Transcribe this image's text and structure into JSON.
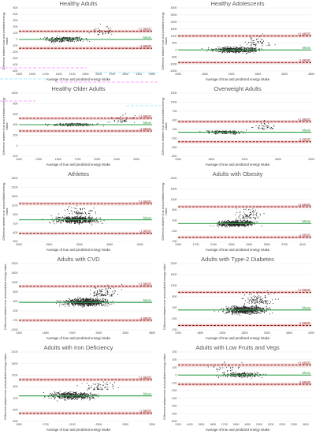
{
  "figure": {
    "colors": {
      "points": "#222222",
      "mean_line": "#2e9e48",
      "limit_line": "#8b1a1a",
      "limit_band": "#f6d9d9",
      "grid": "#e3e3e3",
      "overlay_magenta": "#ff66ff",
      "overlay_cyan": "#66e0ff"
    }
  },
  "chart_data": [
    {
      "type": "scatter",
      "title": "Healthy Adults",
      "ylabel": "Difference between true and predicted energy intake",
      "xlabel": "Average of true and predicted energy intake",
      "xticks": [
        "1300",
        "1500",
        "1700",
        "1900",
        "2100",
        "2300",
        "2500",
        "2700",
        "2900",
        "3100",
        "3300"
      ],
      "yticks": [
        "500",
        "400",
        "300",
        "200",
        "100",
        "0",
        "-100",
        "-200",
        "-300",
        "-400",
        "-500"
      ],
      "xlim": [
        1300,
        3300
      ],
      "ylim": [
        -500,
        500
      ],
      "mean": 0,
      "upper_loa": 130,
      "lower_loa": -140,
      "line_labels": {
        "upper": "+1.96SD",
        "mean": "Mean",
        "lower": "-1.96SD"
      },
      "points": {
        "n": 300,
        "x_center": 2000,
        "x_spread": 320,
        "y_spread": 70,
        "outlier_x": 2550,
        "outlier_spread": 250,
        "seed": 1
      }
    },
    {
      "type": "scatter",
      "title": "Healthy Adolescents",
      "ylabel": "Difference between true and predicted energy intake",
      "xlabel": "Average of true and predicted energy intake",
      "xticks": [
        "1300",
        "1800",
        "2300",
        "2800",
        "3300",
        "3800"
      ],
      "yticks": [
        "3000",
        "2500",
        "2000",
        "1500",
        "1000",
        "500",
        "0",
        "-500",
        "-1000",
        "-1500"
      ],
      "xlim": [
        1300,
        3800
      ],
      "ylim": [
        -1500,
        3000
      ],
      "mean": 0,
      "upper_loa": 1000,
      "lower_loa": -900,
      "line_labels": {
        "upper": "+1.96SD",
        "mean": "Mean",
        "lower": "-1.96SD"
      },
      "points": {
        "n": 600,
        "x_center": 2400,
        "x_spread": 450,
        "y_spread": 300,
        "outlier_x": 2800,
        "outlier_spread": 1100,
        "seed": 2
      }
    },
    {
      "type": "scatter",
      "title": "Healthy Older Adults",
      "ylabel": "Difference between true and predicted energy intake",
      "xlabel": "Average of true and predicted energy intake",
      "xticks": [
        "1000",
        "1250",
        "1500",
        "1750",
        "2000",
        "2250",
        "2500"
      ],
      "yticks": [
        "1000",
        "800",
        "600",
        "400",
        "200",
        "0",
        "-200"
      ],
      "xlim": [
        1000,
        2700
      ],
      "ylim": [
        -200,
        1000
      ],
      "mean": 400,
      "upper_loa": 520,
      "lower_loa": 280,
      "line_labels": {
        "upper": "+1.96SD",
        "mean": "Mean",
        "lower": "-1.96SD"
      },
      "points": {
        "n": 260,
        "x_center": 1700,
        "x_spread": 300,
        "y_spread": 40,
        "outlier_x": 2300,
        "outlier_spread": 220,
        "seed": 3
      }
    },
    {
      "type": "scatter",
      "title": "Overweight Adults",
      "ylabel": "Difference between true and predicted energy intake",
      "xlabel": "Average of true and predicted energy intake",
      "xticks": [
        "1300",
        "1800",
        "2300",
        "2800",
        "3300"
      ],
      "yticks": [
        "1300",
        "1000",
        "700",
        "400",
        "100",
        "-200",
        "-500",
        "-800"
      ],
      "xlim": [
        1300,
        3300
      ],
      "ylim": [
        -800,
        1300
      ],
      "mean": 0,
      "upper_loa": 350,
      "lower_loa": -320,
      "line_labels": {
        "upper": "+1.96SD",
        "mean": "Mean",
        "lower": "-1.96SD"
      },
      "points": {
        "n": 260,
        "x_center": 2000,
        "x_spread": 300,
        "y_spread": 90,
        "outlier_x": 2600,
        "outlier_spread": 400,
        "seed": 4
      }
    },
    {
      "type": "scatter",
      "title": "Athletes",
      "ylabel": "Difference between true and predicted energy intake",
      "xlabel": "Average of true and predicted energy intake",
      "xticks": [
        "2000",
        "2500",
        "3000",
        "3500",
        "4000"
      ],
      "yticks": [
        "2600",
        "2100",
        "1600",
        "1100",
        "600",
        "100",
        "-400",
        "-900"
      ],
      "xlim": [
        2000,
        4200
      ],
      "ylim": [
        -900,
        2600
      ],
      "mean": 300,
      "upper_loa": 1200,
      "lower_loa": -450,
      "line_labels": {
        "upper": "+1.96SD",
        "mean": "Mean",
        "lower": "-1.96SD"
      },
      "points": {
        "n": 600,
        "x_center": 2950,
        "x_spread": 380,
        "y_spread": 330,
        "outlier_x": 3000,
        "outlier_spread": 700,
        "seed": 5
      }
    },
    {
      "type": "scatter",
      "title": "Adults with Obesity",
      "ylabel": "Difference between true and predicted energy intake",
      "xlabel": "Average of true and predicted energy intake",
      "xticks": [
        "1300",
        "1700",
        "2100",
        "2500",
        "2900",
        "3300",
        "3700",
        "4100"
      ],
      "yticks": [
        "2300",
        "1800",
        "1300",
        "800",
        "300",
        "-200",
        "-700"
      ],
      "xlim": [
        1300,
        4300
      ],
      "ylim": [
        -700,
        2300
      ],
      "mean": 150,
      "upper_loa": 950,
      "lower_loa": -500,
      "line_labels": {
        "upper": "+1.96SD",
        "mean": "Mean",
        "lower": "-1.96SD"
      },
      "points": {
        "n": 700,
        "x_center": 2600,
        "x_spread": 450,
        "y_spread": 230,
        "outlier_x": 2900,
        "outlier_spread": 800,
        "seed": 6
      }
    },
    {
      "type": "scatter",
      "title": "Adults with CVD",
      "ylabel": "Difference between true and predicted energy intake",
      "xlabel": "Average of true and predicted energy intake",
      "xticks": [
        "1300",
        "1800",
        "2300",
        "2800",
        "3300",
        "3800"
      ],
      "yticks": [
        "2300",
        "1800",
        "1300",
        "800",
        "300",
        "-200",
        "-700",
        "-1200"
      ],
      "xlim": [
        1300,
        3800
      ],
      "ylim": [
        -1200,
        2300
      ],
      "mean": 250,
      "upper_loa": 1100,
      "lower_loa": -700,
      "line_labels": {
        "upper": "+1.96SD",
        "mean": "Mean",
        "lower": "-1.96SD"
      },
      "points": {
        "n": 800,
        "x_center": 2550,
        "x_spread": 420,
        "y_spread": 330,
        "outlier_x": 2900,
        "outlier_spread": 800,
        "seed": 7
      }
    },
    {
      "type": "scatter",
      "title": "Adults with Type-2 Diabetes",
      "ylabel": "Difference between true and predicted energy intake",
      "xlabel": "Average of true and predicted energy intake",
      "xticks": [
        "1300",
        "1800",
        "2300",
        "2800",
        "3300",
        "3800",
        "4300"
      ],
      "yticks": [
        "2300",
        "1800",
        "1300",
        "800",
        "300",
        "-200",
        "-700"
      ],
      "xlim": [
        1300,
        4300
      ],
      "ylim": [
        -700,
        2300
      ],
      "mean": 200,
      "upper_loa": 1000,
      "lower_loa": -500,
      "line_labels": {
        "upper": "+1.96SD",
        "mean": "Mean",
        "lower": "-1.96SD"
      },
      "points": {
        "n": 800,
        "x_center": 2800,
        "x_spread": 480,
        "y_spread": 280,
        "outlier_x": 3100,
        "outlier_spread": 800,
        "seed": 8
      }
    },
    {
      "type": "scatter",
      "title": "Adults with Iron Deficiency",
      "ylabel": "Difference between true and predicted energy intake",
      "xlabel": "Average of true and predicted energy intake",
      "xticks": [
        "1300",
        "1700",
        "2100",
        "2500",
        "2900",
        "3300"
      ],
      "yticks": [
        "2100",
        "1600",
        "1100",
        "600",
        "100",
        "-400",
        "-900"
      ],
      "xlim": [
        1300,
        3300
      ],
      "ylim": [
        -900,
        2100
      ],
      "mean": 200,
      "upper_loa": 900,
      "lower_loa": -550,
      "line_labels": {
        "upper": "+1.96SD",
        "mean": "Mean",
        "lower": "-1.96SD"
      },
      "points": {
        "n": 550,
        "x_center": 2100,
        "x_spread": 350,
        "y_spread": 250,
        "outlier_x": 2500,
        "outlier_spread": 600,
        "seed": 9
      }
    },
    {
      "type": "scatter",
      "title": "Adults with Low Fruits and Vegs",
      "ylabel": "Difference between true and predicted energy intake",
      "xlabel": "Average of true and predicted energy intake",
      "xticks": [
        "1300",
        "1400",
        "1500",
        "1600",
        "1700",
        "1800",
        "1900",
        "2000",
        "2100",
        "2200",
        "2300",
        "2400"
      ],
      "yticks": [
        "300",
        "200",
        "100",
        "0",
        "-100",
        "-200",
        "-300",
        "-400",
        "-500",
        "-600"
      ],
      "xlim": [
        1300,
        2450
      ],
      "ylim": [
        -600,
        300
      ],
      "mean": 0,
      "upper_loa": 130,
      "lower_loa": -120,
      "line_labels": {
        "upper": "+1.96SD",
        "mean": "Mean",
        "lower": "-1.96SD"
      },
      "points": {
        "n": 260,
        "x_center": 1850,
        "x_spread": 200,
        "y_spread": 50,
        "outlier_x": 1700,
        "outlier_spread": 200,
        "seed": 10
      }
    }
  ]
}
